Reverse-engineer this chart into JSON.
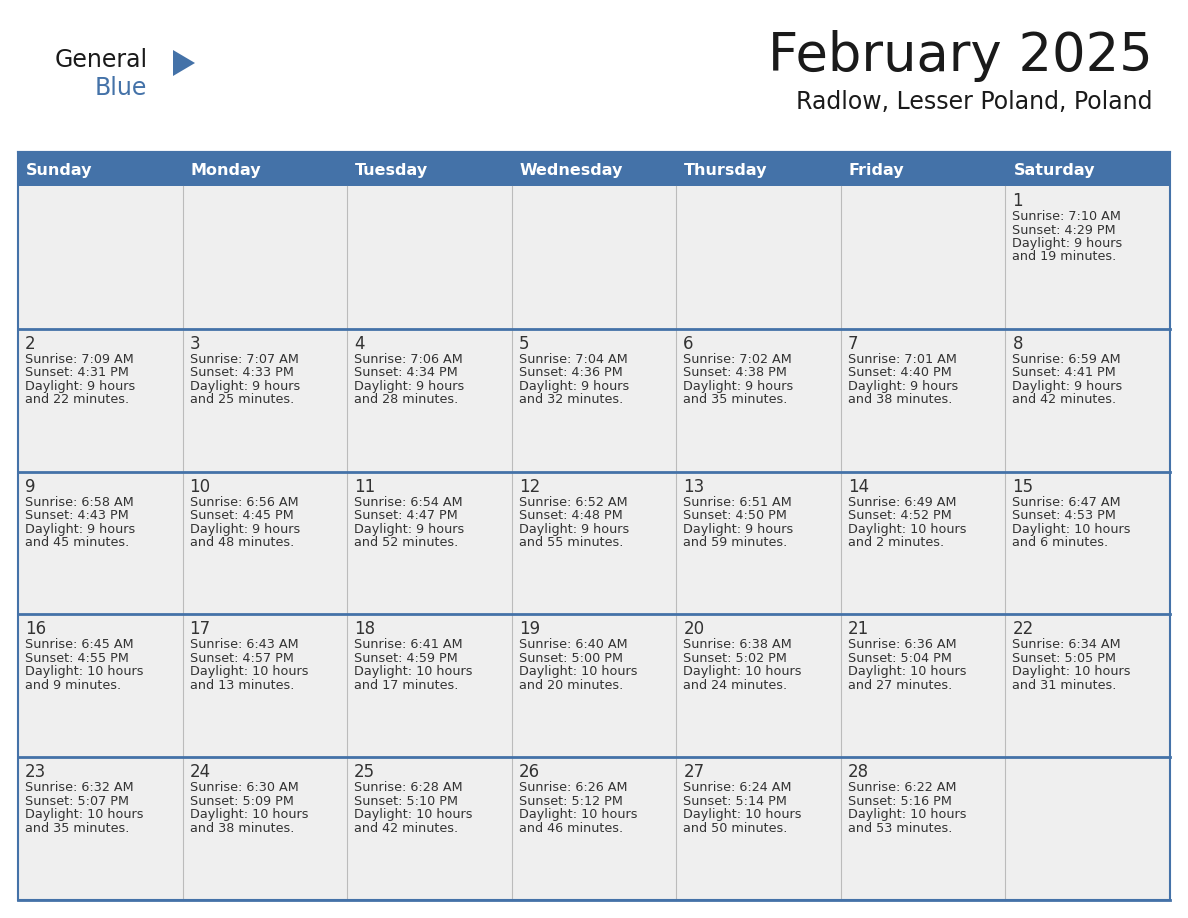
{
  "title": "February 2025",
  "subtitle": "Radlow, Lesser Poland, Poland",
  "header_bg": "#4472A8",
  "header_text": "#FFFFFF",
  "cell_bg_light": "#EFEFEF",
  "border_color": "#4472A8",
  "grid_line_color": "#BBBBBB",
  "day_num_color": "#333333",
  "cell_text_color": "#333333",
  "title_color": "#1a1a1a",
  "subtitle_color": "#1a1a1a",
  "logo_general_color": "#1a1a1a",
  "logo_blue_color": "#4472A8",
  "logo_triangle_color": "#4472A8",
  "day_headers": [
    "Sunday",
    "Monday",
    "Tuesday",
    "Wednesday",
    "Thursday",
    "Friday",
    "Saturday"
  ],
  "days": [
    {
      "day": 1,
      "col": 6,
      "row": 0,
      "sunrise": "7:10 AM",
      "sunset": "4:29 PM",
      "daylight_h": "9 hours",
      "daylight_m": "19 minutes."
    },
    {
      "day": 2,
      "col": 0,
      "row": 1,
      "sunrise": "7:09 AM",
      "sunset": "4:31 PM",
      "daylight_h": "9 hours",
      "daylight_m": "22 minutes."
    },
    {
      "day": 3,
      "col": 1,
      "row": 1,
      "sunrise": "7:07 AM",
      "sunset": "4:33 PM",
      "daylight_h": "9 hours",
      "daylight_m": "25 minutes."
    },
    {
      "day": 4,
      "col": 2,
      "row": 1,
      "sunrise": "7:06 AM",
      "sunset": "4:34 PM",
      "daylight_h": "9 hours",
      "daylight_m": "28 minutes."
    },
    {
      "day": 5,
      "col": 3,
      "row": 1,
      "sunrise": "7:04 AM",
      "sunset": "4:36 PM",
      "daylight_h": "9 hours",
      "daylight_m": "32 minutes."
    },
    {
      "day": 6,
      "col": 4,
      "row": 1,
      "sunrise": "7:02 AM",
      "sunset": "4:38 PM",
      "daylight_h": "9 hours",
      "daylight_m": "35 minutes."
    },
    {
      "day": 7,
      "col": 5,
      "row": 1,
      "sunrise": "7:01 AM",
      "sunset": "4:40 PM",
      "daylight_h": "9 hours",
      "daylight_m": "38 minutes."
    },
    {
      "day": 8,
      "col": 6,
      "row": 1,
      "sunrise": "6:59 AM",
      "sunset": "4:41 PM",
      "daylight_h": "9 hours",
      "daylight_m": "42 minutes."
    },
    {
      "day": 9,
      "col": 0,
      "row": 2,
      "sunrise": "6:58 AM",
      "sunset": "4:43 PM",
      "daylight_h": "9 hours",
      "daylight_m": "45 minutes."
    },
    {
      "day": 10,
      "col": 1,
      "row": 2,
      "sunrise": "6:56 AM",
      "sunset": "4:45 PM",
      "daylight_h": "9 hours",
      "daylight_m": "48 minutes."
    },
    {
      "day": 11,
      "col": 2,
      "row": 2,
      "sunrise": "6:54 AM",
      "sunset": "4:47 PM",
      "daylight_h": "9 hours",
      "daylight_m": "52 minutes."
    },
    {
      "day": 12,
      "col": 3,
      "row": 2,
      "sunrise": "6:52 AM",
      "sunset": "4:48 PM",
      "daylight_h": "9 hours",
      "daylight_m": "55 minutes."
    },
    {
      "day": 13,
      "col": 4,
      "row": 2,
      "sunrise": "6:51 AM",
      "sunset": "4:50 PM",
      "daylight_h": "9 hours",
      "daylight_m": "59 minutes."
    },
    {
      "day": 14,
      "col": 5,
      "row": 2,
      "sunrise": "6:49 AM",
      "sunset": "4:52 PM",
      "daylight_h": "10 hours",
      "daylight_m": "2 minutes."
    },
    {
      "day": 15,
      "col": 6,
      "row": 2,
      "sunrise": "6:47 AM",
      "sunset": "4:53 PM",
      "daylight_h": "10 hours",
      "daylight_m": "6 minutes."
    },
    {
      "day": 16,
      "col": 0,
      "row": 3,
      "sunrise": "6:45 AM",
      "sunset": "4:55 PM",
      "daylight_h": "10 hours",
      "daylight_m": "9 minutes."
    },
    {
      "day": 17,
      "col": 1,
      "row": 3,
      "sunrise": "6:43 AM",
      "sunset": "4:57 PM",
      "daylight_h": "10 hours",
      "daylight_m": "13 minutes."
    },
    {
      "day": 18,
      "col": 2,
      "row": 3,
      "sunrise": "6:41 AM",
      "sunset": "4:59 PM",
      "daylight_h": "10 hours",
      "daylight_m": "17 minutes."
    },
    {
      "day": 19,
      "col": 3,
      "row": 3,
      "sunrise": "6:40 AM",
      "sunset": "5:00 PM",
      "daylight_h": "10 hours",
      "daylight_m": "20 minutes."
    },
    {
      "day": 20,
      "col": 4,
      "row": 3,
      "sunrise": "6:38 AM",
      "sunset": "5:02 PM",
      "daylight_h": "10 hours",
      "daylight_m": "24 minutes."
    },
    {
      "day": 21,
      "col": 5,
      "row": 3,
      "sunrise": "6:36 AM",
      "sunset": "5:04 PM",
      "daylight_h": "10 hours",
      "daylight_m": "27 minutes."
    },
    {
      "day": 22,
      "col": 6,
      "row": 3,
      "sunrise": "6:34 AM",
      "sunset": "5:05 PM",
      "daylight_h": "10 hours",
      "daylight_m": "31 minutes."
    },
    {
      "day": 23,
      "col": 0,
      "row": 4,
      "sunrise": "6:32 AM",
      "sunset": "5:07 PM",
      "daylight_h": "10 hours",
      "daylight_m": "35 minutes."
    },
    {
      "day": 24,
      "col": 1,
      "row": 4,
      "sunrise": "6:30 AM",
      "sunset": "5:09 PM",
      "daylight_h": "10 hours",
      "daylight_m": "38 minutes."
    },
    {
      "day": 25,
      "col": 2,
      "row": 4,
      "sunrise": "6:28 AM",
      "sunset": "5:10 PM",
      "daylight_h": "10 hours",
      "daylight_m": "42 minutes."
    },
    {
      "day": 26,
      "col": 3,
      "row": 4,
      "sunrise": "6:26 AM",
      "sunset": "5:12 PM",
      "daylight_h": "10 hours",
      "daylight_m": "46 minutes."
    },
    {
      "day": 27,
      "col": 4,
      "row": 4,
      "sunrise": "6:24 AM",
      "sunset": "5:14 PM",
      "daylight_h": "10 hours",
      "daylight_m": "50 minutes."
    },
    {
      "day": 28,
      "col": 5,
      "row": 4,
      "sunrise": "6:22 AM",
      "sunset": "5:16 PM",
      "daylight_h": "10 hours",
      "daylight_m": "53 minutes."
    }
  ]
}
